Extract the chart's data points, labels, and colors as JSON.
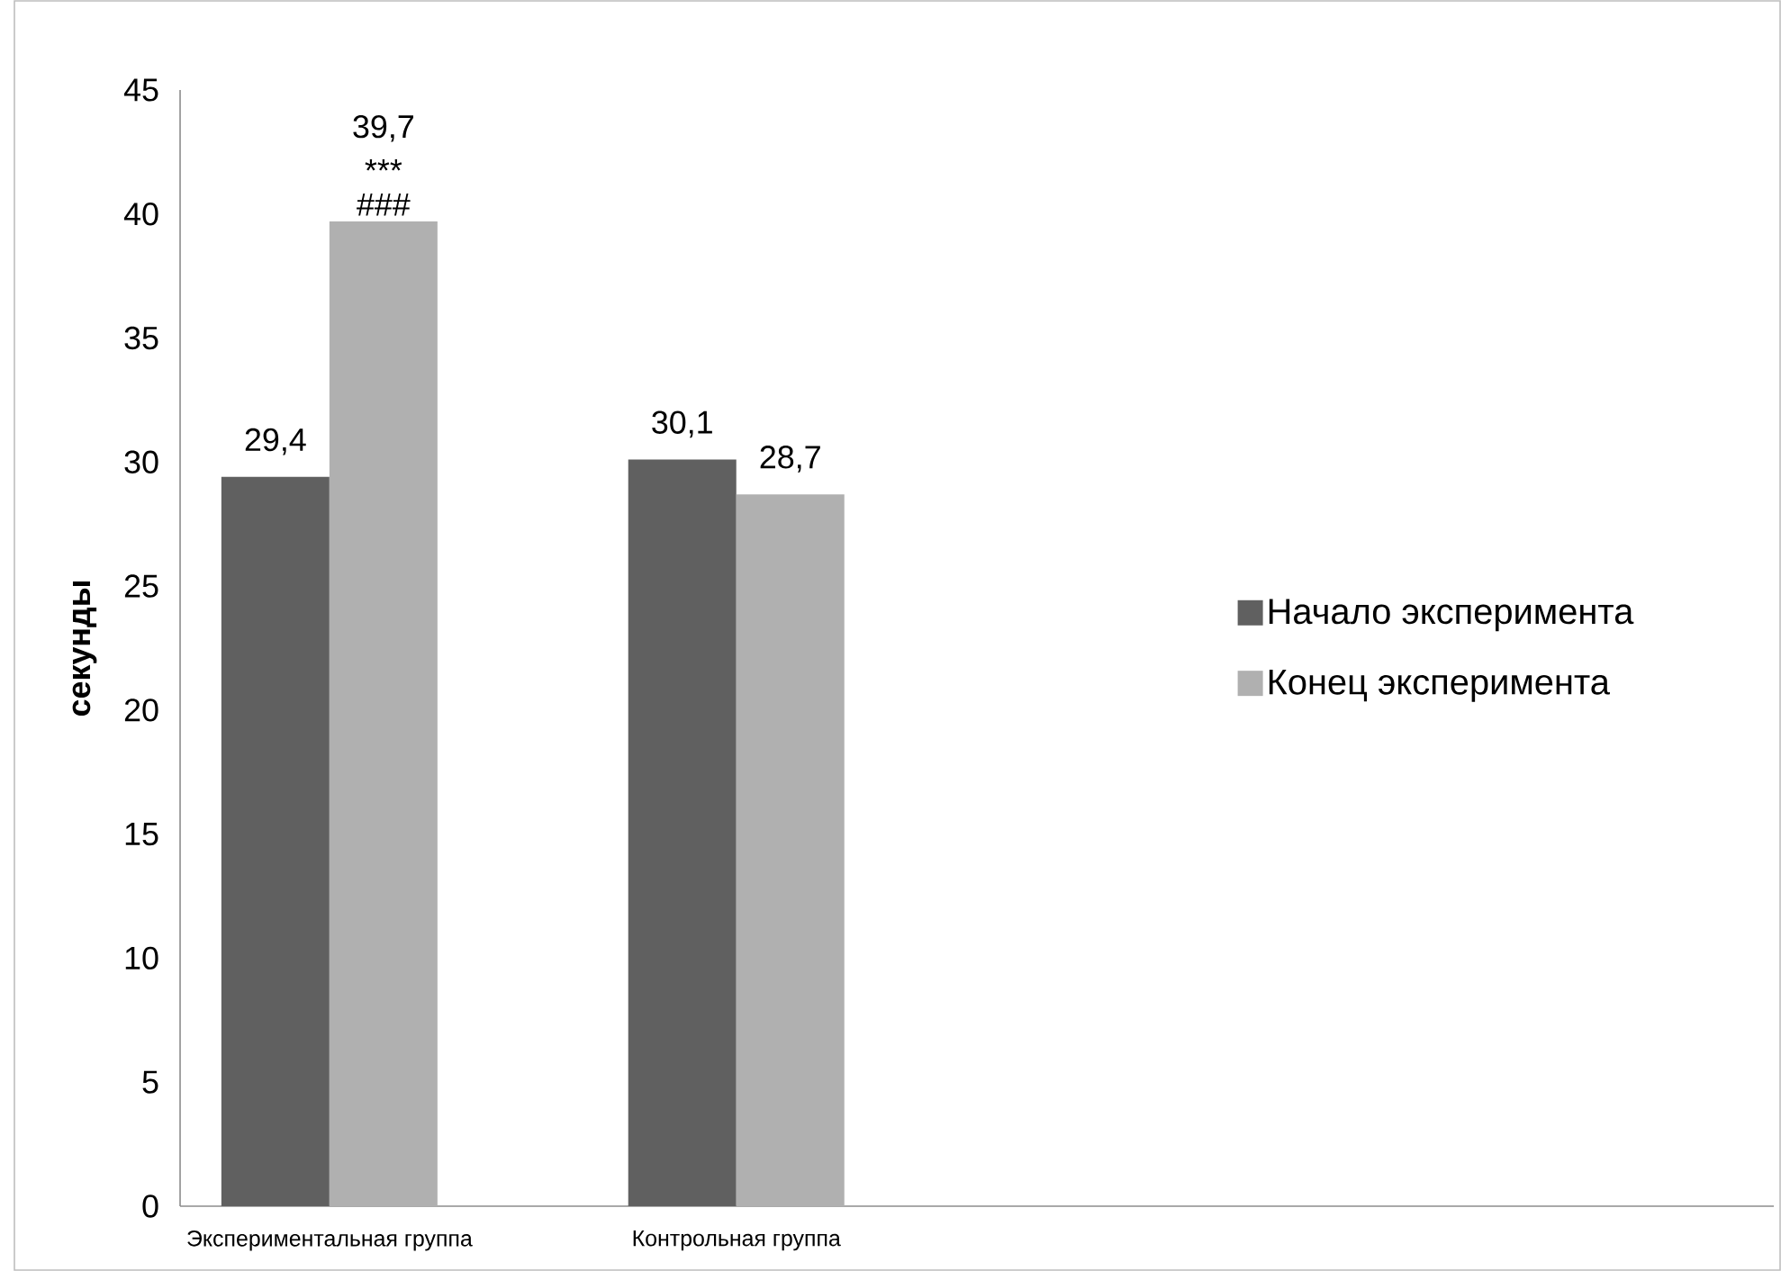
{
  "chart_data": {
    "type": "bar",
    "ylabel": "секунды",
    "categories": [
      "Экспериментальная группа",
      "Контрольная группа"
    ],
    "series": [
      {
        "name": "Начало эксперимента",
        "color": "#606060",
        "values": [
          29.4,
          30.1
        ],
        "value_labels": [
          "29,4",
          "30,1"
        ]
      },
      {
        "name": "Конец эксперимента",
        "color": "#b0b0b0",
        "values": [
          39.7,
          28.7
        ],
        "value_labels": [
          "39,7",
          "28,7"
        ]
      }
    ],
    "annotations": [
      {
        "text": "###",
        "x": "Экспериментальная группа",
        "y": 39.7
      },
      {
        "text": "***",
        "x": "Экспериментальная группа",
        "y": 39.7
      }
    ],
    "ylim": [
      0,
      45
    ],
    "yticks": [
      0,
      5,
      10,
      15,
      20,
      25,
      30,
      35,
      40,
      45
    ],
    "legend": "right",
    "grid": false
  }
}
